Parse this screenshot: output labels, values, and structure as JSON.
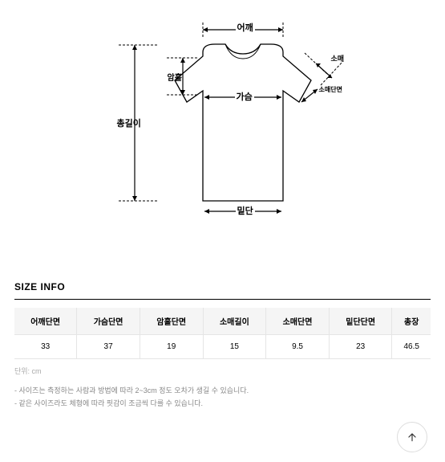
{
  "diagram": {
    "labels": {
      "shoulder": "어깨",
      "armhole": "암홀",
      "total_length": "총길이",
      "chest": "가슴",
      "hem": "밑단",
      "sleeve": "소매",
      "sleeve_hem": "소매단면"
    },
    "stroke": "#000000",
    "fill": "#ffffff",
    "dash": "3,2"
  },
  "section_title": "SIZE INFO",
  "table": {
    "headers": [
      "어깨단면",
      "가슴단면",
      "암홀단면",
      "소매길이",
      "소매단면",
      "밑단단면",
      "총장"
    ],
    "rows": [
      [
        "33",
        "37",
        "19",
        "15",
        "9.5",
        "23",
        "46.5"
      ]
    ]
  },
  "unit_text": "단위: cm",
  "notes": [
    "- 사이즈는 측정하는 사람과 방법에 따라 2~3cm 정도 오차가 생길 수 있습니다.",
    "- 같은 사이즈라도 체형에 따라 핏감이 조금씩 다를 수 있습니다."
  ],
  "scroll_top": {
    "icon": "arrow-up"
  }
}
